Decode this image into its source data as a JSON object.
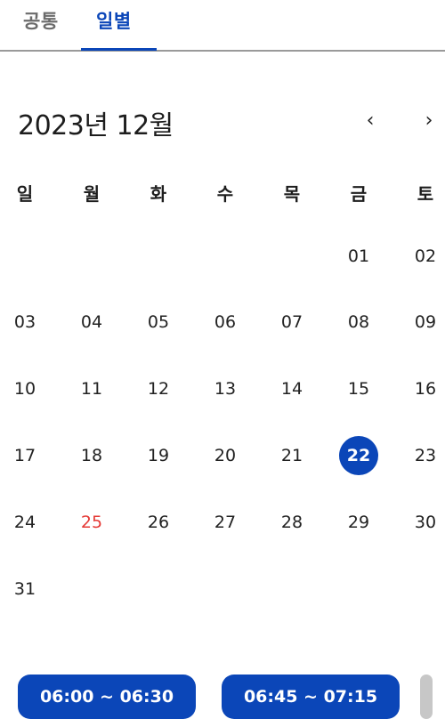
{
  "tabs": [
    {
      "label": "공통",
      "active": false
    },
    {
      "label": "일별",
      "active": true
    }
  ],
  "calendar": {
    "month_title": "2023년 12월",
    "prev_icon": "‹",
    "next_icon": "›",
    "weekdays": [
      "일",
      "월",
      "화",
      "수",
      "목",
      "금",
      "토"
    ],
    "days": [
      "01",
      "02",
      "03",
      "04",
      "05",
      "06",
      "07",
      "08",
      "09",
      "10",
      "11",
      "12",
      "13",
      "14",
      "15",
      "16",
      "17",
      "18",
      "19",
      "20",
      "21",
      "22",
      "23",
      "24",
      "25",
      "26",
      "27",
      "28",
      "29",
      "30",
      "31"
    ],
    "selected_day": "22",
    "holiday_day": "25"
  },
  "time_slots": [
    {
      "label": "06:00 ~ 06:30"
    },
    {
      "label": "06:45 ~ 07:15"
    },
    {
      "label": ""
    }
  ],
  "colors": {
    "accent": "#0b46b8",
    "holiday": "#e53935",
    "inactive_tab": "#6b6b6b",
    "disabled_slot": "#c7c7c7"
  }
}
